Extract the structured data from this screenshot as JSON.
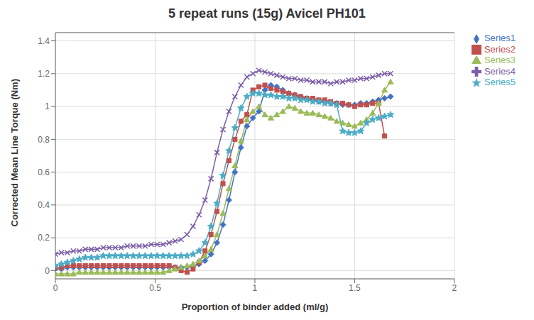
{
  "chart_data": {
    "type": "line",
    "title": "5 repeat runs (15g) Avicel PH101",
    "x_label": "Proportion of binder added (ml/g)",
    "y_label": "Corrected Mean Line Torque (Nm)",
    "xlim": [
      0,
      2
    ],
    "ylim": [
      -0.05,
      1.45
    ],
    "xticks": [
      0,
      0.5,
      1,
      1.5,
      2
    ],
    "yticks": [
      0,
      0.2,
      0.4,
      0.6,
      0.8,
      1,
      1.2,
      1.4
    ],
    "grid": true,
    "legend": "right",
    "x": [
      0.0,
      0.03,
      0.06,
      0.09,
      0.12,
      0.15,
      0.18,
      0.21,
      0.24,
      0.27,
      0.3,
      0.33,
      0.36,
      0.39,
      0.42,
      0.45,
      0.48,
      0.51,
      0.54,
      0.57,
      0.6,
      0.63,
      0.66,
      0.69,
      0.72,
      0.75,
      0.78,
      0.81,
      0.84,
      0.87,
      0.9,
      0.93,
      0.96,
      0.99,
      1.02,
      1.05,
      1.08,
      1.11,
      1.14,
      1.17,
      1.2,
      1.23,
      1.26,
      1.29,
      1.32,
      1.35,
      1.38,
      1.41,
      1.44,
      1.47,
      1.5,
      1.53,
      1.56,
      1.59,
      1.62,
      1.65,
      1.68
    ],
    "series": [
      {
        "name": "Series1",
        "color": "#4472C4",
        "marker": "diamond",
        "values": [
          0.01,
          0.01,
          0.02,
          0.02,
          0.02,
          0.02,
          0.02,
          0.02,
          0.02,
          0.02,
          0.02,
          0.02,
          0.02,
          0.02,
          0.02,
          0.02,
          0.02,
          0.02,
          0.02,
          0.02,
          0.02,
          0.02,
          0.02,
          0.03,
          0.04,
          0.06,
          0.1,
          0.17,
          0.28,
          0.43,
          0.6,
          0.75,
          0.88,
          0.93,
          0.97,
          1.1,
          1.13,
          1.12,
          1.1,
          1.08,
          1.07,
          1.06,
          1.05,
          1.04,
          1.03,
          1.03,
          1.02,
          1.02,
          1.01,
          1.01,
          1.01,
          1.02,
          1.02,
          1.03,
          1.04,
          1.05,
          1.06
        ]
      },
      {
        "name": "Series2",
        "color": "#C0504D",
        "marker": "square",
        "values": [
          0.02,
          0.02,
          0.03,
          0.03,
          0.03,
          0.03,
          0.03,
          0.03,
          0.03,
          0.03,
          0.03,
          0.03,
          0.03,
          0.03,
          0.03,
          0.03,
          0.03,
          0.03,
          0.03,
          0.03,
          0.02,
          0.0,
          -0.01,
          0.01,
          0.05,
          0.12,
          0.22,
          0.36,
          0.53,
          0.67,
          0.8,
          0.91,
          0.95,
          1.1,
          1.12,
          1.13,
          1.11,
          1.1,
          1.09,
          1.08,
          1.07,
          1.06,
          1.05,
          1.05,
          1.04,
          1.04,
          1.03,
          1.02,
          1.02,
          1.01,
          1.0,
          1.01,
          1.01,
          1.02,
          1.02,
          0.82,
          null
        ]
      },
      {
        "name": "Series3",
        "color": "#9BBB59",
        "marker": "triangle",
        "values": [
          -0.02,
          -0.02,
          -0.02,
          -0.02,
          -0.01,
          -0.01,
          -0.01,
          -0.01,
          -0.01,
          -0.01,
          -0.01,
          -0.01,
          -0.01,
          -0.01,
          -0.01,
          -0.01,
          -0.01,
          -0.01,
          -0.01,
          0.0,
          0.01,
          0.02,
          0.03,
          0.04,
          0.06,
          0.09,
          0.13,
          0.22,
          0.35,
          0.5,
          0.64,
          0.79,
          0.92,
          0.97,
          1.0,
          0.95,
          0.93,
          0.95,
          0.97,
          1.0,
          0.99,
          0.97,
          0.96,
          0.96,
          0.95,
          0.94,
          0.93,
          0.91,
          0.9,
          0.89,
          0.88,
          0.9,
          0.92,
          0.96,
          1.02,
          1.1,
          1.15
        ]
      },
      {
        "name": "Series4",
        "color": "#7B5EA7",
        "marker": "x",
        "values": [
          0.1,
          0.11,
          0.11,
          0.12,
          0.12,
          0.13,
          0.13,
          0.13,
          0.14,
          0.14,
          0.14,
          0.14,
          0.15,
          0.15,
          0.15,
          0.15,
          0.16,
          0.16,
          0.16,
          0.17,
          0.18,
          0.19,
          0.22,
          0.27,
          0.34,
          0.43,
          0.56,
          0.72,
          0.86,
          0.97,
          1.06,
          1.13,
          1.18,
          1.2,
          1.22,
          1.21,
          1.2,
          1.19,
          1.18,
          1.17,
          1.17,
          1.16,
          1.16,
          1.15,
          1.15,
          1.15,
          1.14,
          1.15,
          1.15,
          1.16,
          1.16,
          1.17,
          1.17,
          1.18,
          1.19,
          1.2,
          1.2
        ]
      },
      {
        "name": "Series5",
        "color": "#4BACC6",
        "marker": "star",
        "values": [
          0.03,
          0.04,
          0.05,
          0.06,
          0.07,
          0.08,
          0.08,
          0.08,
          0.09,
          0.09,
          0.09,
          0.09,
          0.09,
          0.09,
          0.09,
          0.09,
          0.09,
          0.09,
          0.09,
          0.09,
          0.09,
          0.09,
          0.09,
          0.1,
          0.12,
          0.17,
          0.27,
          0.41,
          0.58,
          0.73,
          0.87,
          0.99,
          1.06,
          1.08,
          1.08,
          1.07,
          1.07,
          1.06,
          1.06,
          1.05,
          1.05,
          1.04,
          1.04,
          1.03,
          1.03,
          1.02,
          1.02,
          1.01,
          0.85,
          0.84,
          0.84,
          0.85,
          0.9,
          0.92,
          0.93,
          0.94,
          0.95
        ]
      }
    ]
  }
}
